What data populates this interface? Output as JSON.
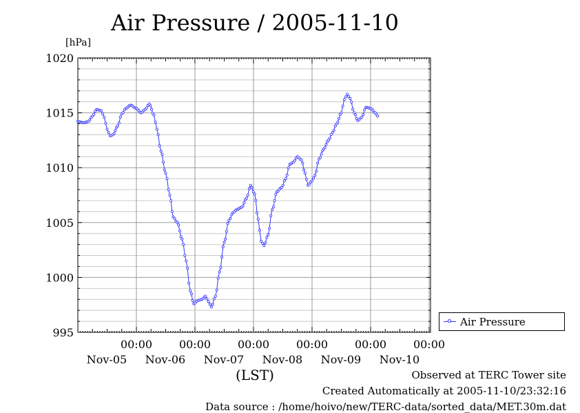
{
  "title": "Air Pressure / 2005-11-10",
  "chart_data": {
    "type": "line",
    "title": "Air Pressure / 2005-11-10",
    "ylabel": "[hPa]",
    "xlabel": "(LST)",
    "ylim": [
      995,
      1020
    ],
    "xlim": [
      0,
      6
    ],
    "y_ticks": [
      "995",
      "1000",
      "1005",
      "1010",
      "1015",
      "1020"
    ],
    "x_ticks": [
      {
        "x": 1,
        "time": "00:00",
        "date": "Nov-05"
      },
      {
        "x": 2,
        "time": "00:00",
        "date": "Nov-06"
      },
      {
        "x": 3,
        "time": "00:00",
        "date": "Nov-07"
      },
      {
        "x": 4,
        "time": "00:00",
        "date": "Nov-08"
      },
      {
        "x": 5,
        "time": "00:00",
        "date": "Nov-09"
      },
      {
        "x": 6,
        "time": "00:00",
        "date": "Nov-10"
      }
    ],
    "grid": true,
    "legend": "right",
    "series": [
      {
        "name": "Air Pressure",
        "color": "#3232ff",
        "points": [
          [
            0.0,
            1014.2
          ],
          [
            0.1,
            1014.1
          ],
          [
            0.18,
            1014.2
          ],
          [
            0.25,
            1014.7
          ],
          [
            0.32,
            1015.3
          ],
          [
            0.4,
            1015.2
          ],
          [
            0.45,
            1014.6
          ],
          [
            0.5,
            1013.5
          ],
          [
            0.55,
            1012.9
          ],
          [
            0.6,
            1013.0
          ],
          [
            0.68,
            1013.8
          ],
          [
            0.75,
            1014.9
          ],
          [
            0.82,
            1015.4
          ],
          [
            0.9,
            1015.7
          ],
          [
            1.0,
            1015.4
          ],
          [
            1.08,
            1015.0
          ],
          [
            1.15,
            1015.3
          ],
          [
            1.22,
            1015.8
          ],
          [
            1.3,
            1014.8
          ],
          [
            1.35,
            1013.5
          ],
          [
            1.42,
            1011.5
          ],
          [
            1.5,
            1009.5
          ],
          [
            1.57,
            1007.5
          ],
          [
            1.63,
            1005.5
          ],
          [
            1.7,
            1005.0
          ],
          [
            1.78,
            1003.5
          ],
          [
            1.85,
            1001.5
          ],
          [
            1.92,
            998.8
          ],
          [
            1.98,
            997.6
          ],
          [
            2.05,
            997.9
          ],
          [
            2.12,
            998.0
          ],
          [
            2.18,
            998.3
          ],
          [
            2.23,
            997.8
          ],
          [
            2.28,
            997.3
          ],
          [
            2.35,
            998.3
          ],
          [
            2.42,
            1000.5
          ],
          [
            2.5,
            1003.2
          ],
          [
            2.58,
            1005.2
          ],
          [
            2.65,
            1005.9
          ],
          [
            2.72,
            1006.2
          ],
          [
            2.8,
            1006.4
          ],
          [
            2.88,
            1007.2
          ],
          [
            2.95,
            1008.4
          ],
          [
            3.02,
            1007.6
          ],
          [
            3.08,
            1005.3
          ],
          [
            3.13,
            1003.3
          ],
          [
            3.18,
            1002.9
          ],
          [
            3.25,
            1003.9
          ],
          [
            3.32,
            1006.2
          ],
          [
            3.4,
            1007.8
          ],
          [
            3.48,
            1008.2
          ],
          [
            3.55,
            1009.0
          ],
          [
            3.62,
            1010.3
          ],
          [
            3.68,
            1010.5
          ],
          [
            3.75,
            1011.0
          ],
          [
            3.82,
            1010.7
          ],
          [
            3.88,
            1009.5
          ],
          [
            3.93,
            1008.4
          ],
          [
            4.0,
            1008.8
          ],
          [
            4.05,
            1009.3
          ],
          [
            4.12,
            1010.8
          ],
          [
            4.2,
            1011.7
          ],
          [
            4.28,
            1012.5
          ],
          [
            4.35,
            1013.2
          ],
          [
            4.42,
            1014.0
          ],
          [
            4.5,
            1015.0
          ],
          [
            4.55,
            1016.2
          ],
          [
            4.6,
            1016.7
          ],
          [
            4.65,
            1016.3
          ],
          [
            4.72,
            1015.0
          ],
          [
            4.78,
            1014.3
          ],
          [
            4.85,
            1014.6
          ],
          [
            4.92,
            1015.5
          ],
          [
            5.0,
            1015.4
          ],
          [
            5.08,
            1015.0
          ],
          [
            5.12,
            1014.7
          ]
        ]
      }
    ]
  },
  "legend": {
    "label": "Air Pressure"
  },
  "credits": {
    "line1": "Observed at TERC Tower site",
    "line2": "Created Automatically at 2005-11-10/23:32:16",
    "line3": "Data source : /home/hoivo/new/TERC-data/sorted_data/MET.30m.dat"
  }
}
